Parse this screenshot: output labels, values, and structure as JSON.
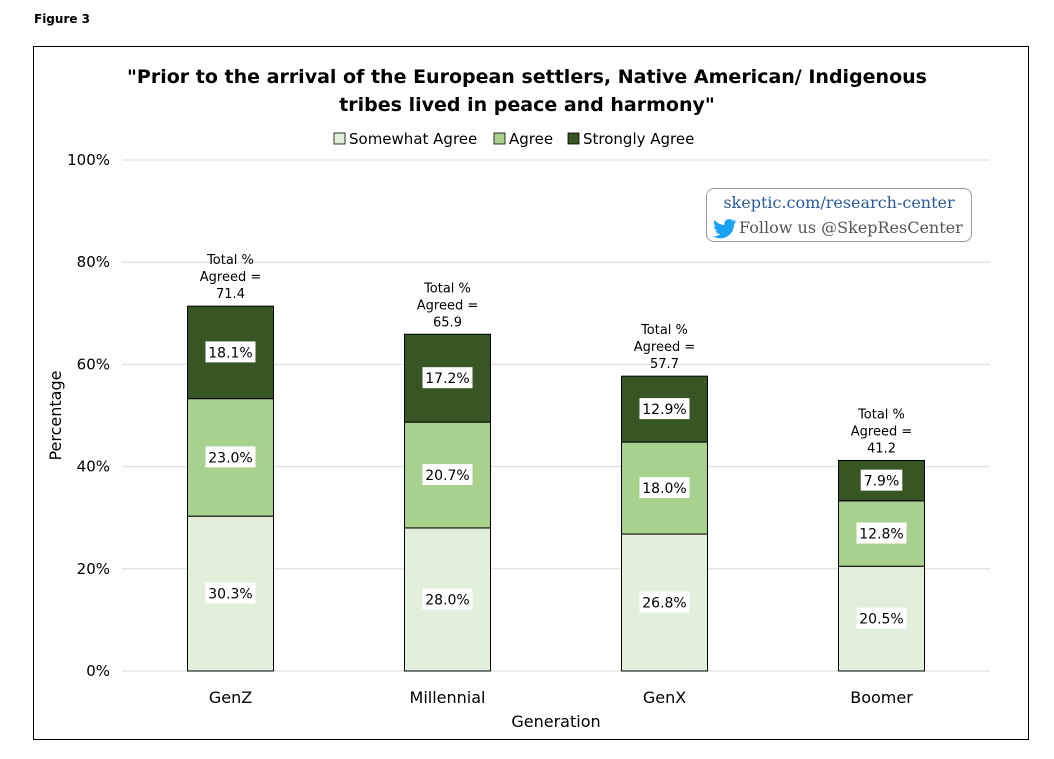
{
  "figure_label": "Figure 3",
  "watermark": {
    "site": "skeptic.com/research-center",
    "follow": "Follow us @SkepResCenter",
    "icon": "twitter-bird-icon"
  },
  "colors": {
    "somewhat_agree": "#e2efda",
    "agree": "#a9d18e",
    "strongly_agree": "#375623"
  },
  "chart_data": {
    "type": "bar",
    "stacked": true,
    "title_lines": [
      "\"Prior to the arrival of the European settlers, Native American/ Indigenous",
      "tribes lived in peace and harmony\""
    ],
    "xlabel": "Generation",
    "ylabel": "Percentage",
    "ylim": [
      0,
      100
    ],
    "yticks": [
      "0%",
      "20%",
      "40%",
      "60%",
      "80%",
      "100%"
    ],
    "grid": true,
    "legend_position": "top",
    "categories": [
      "GenZ",
      "Millennial",
      "GenX",
      "Boomer"
    ],
    "series": [
      {
        "name": "Somewhat Agree",
        "values": [
          30.3,
          28.0,
          26.8,
          20.5
        ],
        "labels": [
          "30.3%",
          "28.0%",
          "26.8%",
          "20.5%"
        ]
      },
      {
        "name": "Agree",
        "values": [
          23.0,
          20.7,
          18.0,
          12.8
        ],
        "labels": [
          "23.0%",
          "20.7%",
          "18.0%",
          "12.8%"
        ]
      },
      {
        "name": "Strongly Agree",
        "values": [
          18.1,
          17.2,
          12.9,
          7.9
        ],
        "labels": [
          "18.1%",
          "17.2%",
          "12.9%",
          "7.9%"
        ]
      }
    ],
    "total_label_lines": [
      "Total %",
      "Agreed ="
    ],
    "totals": [
      "71.4",
      "65.9",
      "57.7",
      "41.2"
    ]
  }
}
